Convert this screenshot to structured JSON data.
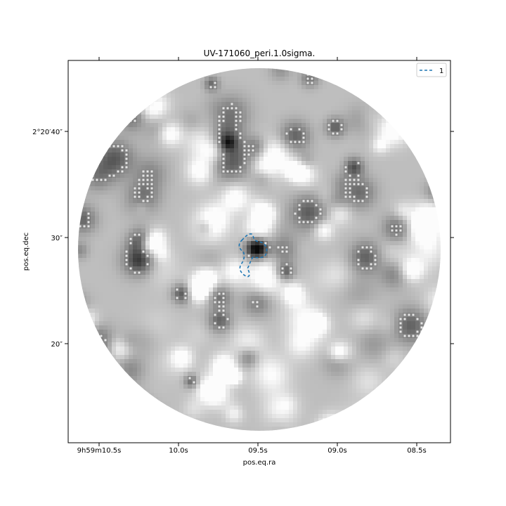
{
  "chart_data": {
    "type": "heatmap",
    "title": "UV-171060_peri.1.0sigma.",
    "xlabel": "pos.eq.ra",
    "ylabel": "pos.eq.dec",
    "x_ticks": [
      "9h59m10.5s",
      "10.0s",
      "09.5s",
      "09.0s",
      "08.5s"
    ],
    "y_ticks": [
      "2°20′40″",
      "30″",
      "20″"
    ],
    "legend": {
      "placement": "top-right",
      "entries": [
        {
          "label": "1",
          "color": "#1f77b4",
          "style": "dashed"
        }
      ]
    },
    "colormap": "gray_r",
    "grid": false,
    "contour_levels_sigma": [
      1.0
    ],
    "highlighted_region": {
      "label": "1",
      "ra_s": 9.56,
      "dec_arcsec": 28.5
    }
  }
}
